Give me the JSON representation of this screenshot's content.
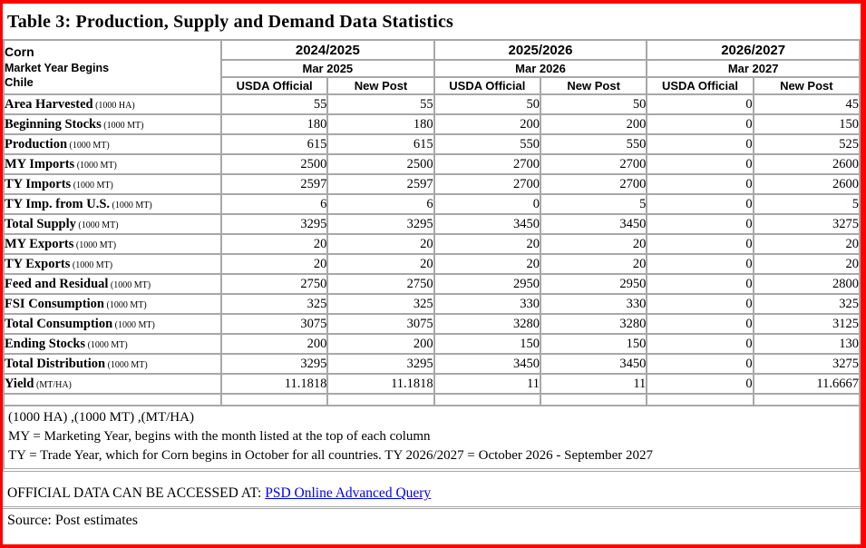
{
  "title": "Table 3: Production, Supply and Demand Data Statistics",
  "table": {
    "commodity": "Corn",
    "market_year_begins_label": "Market Year Begins",
    "country": "Chile",
    "year_groups": [
      {
        "year": "2024/2025",
        "begin": "Mar 2025"
      },
      {
        "year": "2025/2026",
        "begin": "Mar 2026"
      },
      {
        "year": "2026/2027",
        "begin": "Mar 2027"
      }
    ],
    "subcolumns": [
      "USDA Official",
      "New Post"
    ],
    "rows": [
      {
        "label": "Area Harvested",
        "unit": "(1000 HA)",
        "values": [
          "55",
          "55",
          "50",
          "50",
          "0",
          "45"
        ]
      },
      {
        "label": "Beginning Stocks",
        "unit": "(1000 MT)",
        "values": [
          "180",
          "180",
          "200",
          "200",
          "0",
          "150"
        ]
      },
      {
        "label": "Production",
        "unit": "(1000 MT)",
        "values": [
          "615",
          "615",
          "550",
          "550",
          "0",
          "525"
        ]
      },
      {
        "label": "MY Imports",
        "unit": "(1000 MT)",
        "values": [
          "2500",
          "2500",
          "2700",
          "2700",
          "0",
          "2600"
        ]
      },
      {
        "label": "TY Imports",
        "unit": "(1000 MT)",
        "values": [
          "2597",
          "2597",
          "2700",
          "2700",
          "0",
          "2600"
        ]
      },
      {
        "label": "TY Imp. from U.S.",
        "unit": "(1000 MT)",
        "values": [
          "6",
          "6",
          "0",
          "5",
          "0",
          "5"
        ]
      },
      {
        "label": "Total Supply",
        "unit": "(1000 MT)",
        "values": [
          "3295",
          "3295",
          "3450",
          "3450",
          "0",
          "3275"
        ]
      },
      {
        "label": "MY Exports",
        "unit": "(1000 MT)",
        "values": [
          "20",
          "20",
          "20",
          "20",
          "0",
          "20"
        ]
      },
      {
        "label": "TY Exports",
        "unit": "(1000 MT)",
        "values": [
          "20",
          "20",
          "20",
          "20",
          "0",
          "20"
        ]
      },
      {
        "label": "Feed and Residual",
        "unit": "(1000 MT)",
        "values": [
          "2750",
          "2750",
          "2950",
          "2950",
          "0",
          "2800"
        ]
      },
      {
        "label": "FSI Consumption",
        "unit": "(1000 MT)",
        "values": [
          "325",
          "325",
          "330",
          "330",
          "0",
          "325"
        ]
      },
      {
        "label": "Total Consumption",
        "unit": "(1000 MT)",
        "values": [
          "3075",
          "3075",
          "3280",
          "3280",
          "0",
          "3125"
        ]
      },
      {
        "label": "Ending Stocks",
        "unit": "(1000 MT)",
        "values": [
          "200",
          "200",
          "150",
          "150",
          "0",
          "130"
        ]
      },
      {
        "label": "Total Distribution",
        "unit": "(1000 MT)",
        "values": [
          "3295",
          "3295",
          "3450",
          "3450",
          "0",
          "3275"
        ]
      },
      {
        "label": "Yield",
        "unit": "(MT/HA)",
        "values": [
          "11.1818",
          "11.1818",
          "11",
          "11",
          "0",
          "11.6667"
        ]
      },
      {
        "label": "",
        "unit": "",
        "values": [
          "",
          "",
          "",
          "",
          "",
          ""
        ]
      }
    ]
  },
  "footnotes": {
    "units_line": "(1000 HA) ,(1000 MT) ,(MT/HA)",
    "my_line": "MY = Marketing Year, begins with the month listed at the top of each column",
    "ty_line": "TY = Trade Year, which for Corn begins in October for all countries. TY 2026/2027 = October 2026 - September 2027",
    "official_prefix": "OFFICIAL DATA CAN BE ACCESSED AT: ",
    "official_link": "PSD Online Advanced Query",
    "source_line": "Source: Post estimates"
  },
  "colors": {
    "frame": "#fe0000",
    "grid": "#a8a8a8",
    "link": "#0000ee"
  }
}
